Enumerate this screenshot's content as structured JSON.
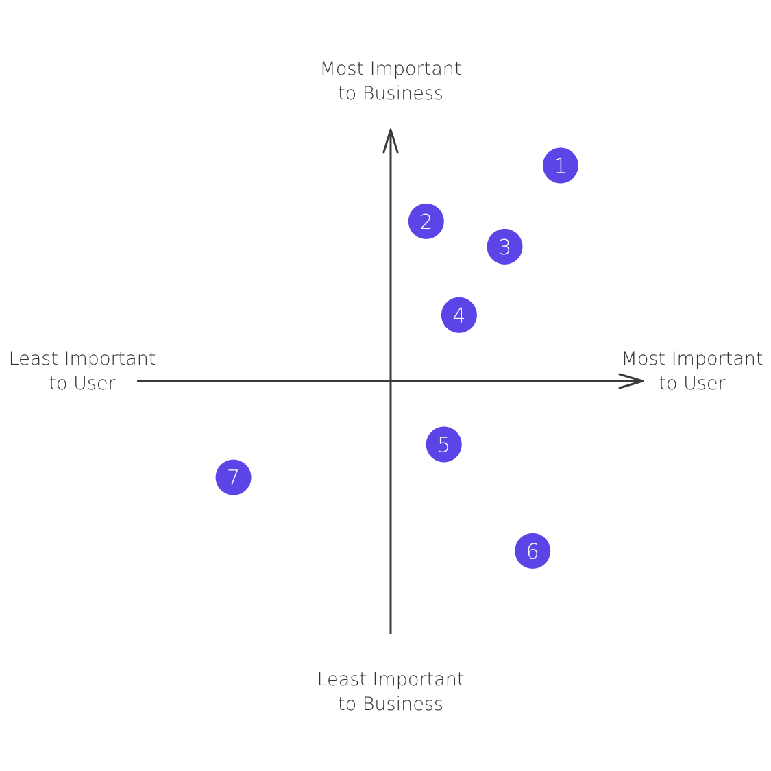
{
  "axes": {
    "top": {
      "line1": "Most Important",
      "line2": "to Business"
    },
    "bottom": {
      "line1": "Least Important",
      "line2": "to Business"
    },
    "left": {
      "line1": "Least Important",
      "line2": "to User"
    },
    "right": {
      "line1": "Most Important",
      "line2": "to User"
    }
  },
  "colors": {
    "axis": "#3a3a3a",
    "marker_fill": "#5b45e6",
    "marker_text": "#ffffff"
  },
  "markers": [
    {
      "label": "1",
      "user": 0.67,
      "business": 0.85
    },
    {
      "label": "2",
      "user": 0.14,
      "business": 0.63
    },
    {
      "label": "3",
      "user": 0.45,
      "business": 0.53
    },
    {
      "label": "4",
      "user": 0.27,
      "business": 0.26
    },
    {
      "label": "5",
      "user": 0.21,
      "business": -0.25
    },
    {
      "label": "6",
      "user": 0.56,
      "business": -0.67
    },
    {
      "label": "7",
      "user": -0.62,
      "business": -0.38
    }
  ]
}
